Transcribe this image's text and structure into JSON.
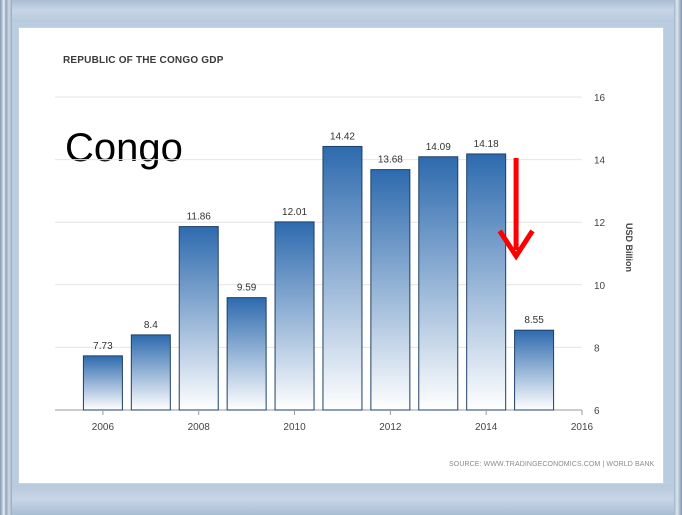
{
  "chart_data": {
    "type": "bar",
    "title": "REPUBLIC OF THE CONGO GDP",
    "overlay_label": "Congo",
    "x": [
      2006,
      2007,
      2008,
      2009,
      2010,
      2011,
      2012,
      2013,
      2014,
      2015
    ],
    "values": [
      7.73,
      8.4,
      11.86,
      9.59,
      12.01,
      14.42,
      13.68,
      14.09,
      14.18,
      8.55
    ],
    "data_labels": [
      "7.73",
      "8.4",
      "11.86",
      "9.59",
      "12.01",
      "14.42",
      "13.68",
      "14.09",
      "14.18",
      "8.55"
    ],
    "x_ticks": [
      "2006",
      "2008",
      "2010",
      "2012",
      "2014",
      "2016"
    ],
    "y_ticks": [
      "6",
      "8",
      "10",
      "12",
      "14",
      "16"
    ],
    "ylabel": "USD Billion",
    "ylim": [
      6,
      16
    ],
    "y_axis_side": "right",
    "grid": "horizontal",
    "source": "SOURCE: WWW.TRADINGECONOMICS.COM | WORLD BANK",
    "annotation": "red down arrow above 2015 bar",
    "colors": {
      "bar_top": "#2d6aae",
      "bar_bottom": "#ffffff",
      "bar_border": "#1f3f66",
      "arrow": "#ff0000",
      "grid": "#e4e4e4"
    }
  }
}
